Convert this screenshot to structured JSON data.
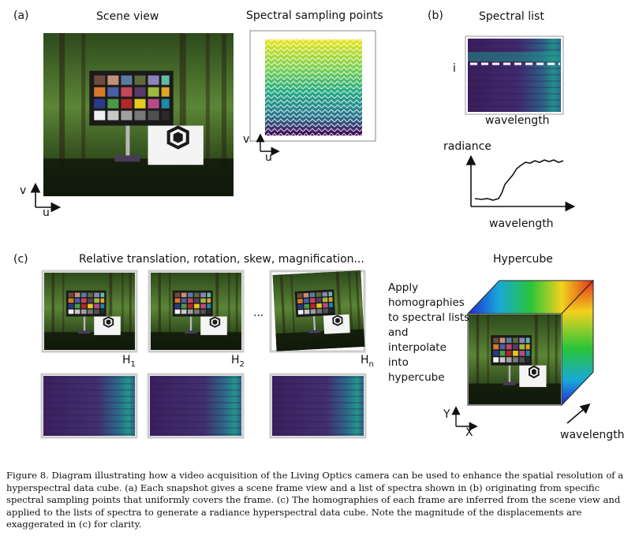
{
  "panel_a": {
    "label": "(a)",
    "scene_title": "Scene view",
    "sampling_title": "Spectral sampling points",
    "axis_u": "u",
    "axis_v": "v",
    "logo_text": "Living Optics"
  },
  "panel_b": {
    "label": "(b)",
    "title": "Spectral list",
    "row_label": "i",
    "x_label": "wavelength",
    "plot_ylabel": "radiance",
    "plot_xlabel": "wavelength"
  },
  "panel_c": {
    "label": "(c)",
    "title": "Relative translation, rotation, skew, magnification...",
    "h1": "H",
    "h1_sub": "1",
    "h2": "H",
    "h2_sub": "2",
    "ellipsis": "...",
    "hn": "H",
    "hn_sub": "n",
    "hypercube_title": "Hypercube",
    "instructions": [
      "Apply",
      "homographies",
      "to spectral lists",
      "and",
      "interpolate",
      "into",
      "hypercube"
    ],
    "axis_y": "Y",
    "axis_x": "X",
    "wavelength": "wavelength"
  },
  "colors": {
    "forest_dark": "#1f3a14",
    "forest_light": "#5f8a3a",
    "spectral_dark": "#3b1c5a",
    "spectral_teal": "#1f9e8a",
    "viridis_yellow": "#e5e419",
    "viridis_purple": "#440154"
  },
  "caption": "Figure 8.   Diagram illustrating how a video acquisition of the Living Optics camera can be used to enhance the spatial resolution of a hyperspectral data cube. (a) Each snapshot gives a scene frame view and a list of spectra shown in (b) originating from specific spectral sampling points that uniformly covers the frame. (c) The homographies of each frame are inferred from the scene view and applied to the lists of spectra to generate a radiance hyperspectral data cube. Note the magnitude of the displacements are exaggerated in (c) for clarity."
}
